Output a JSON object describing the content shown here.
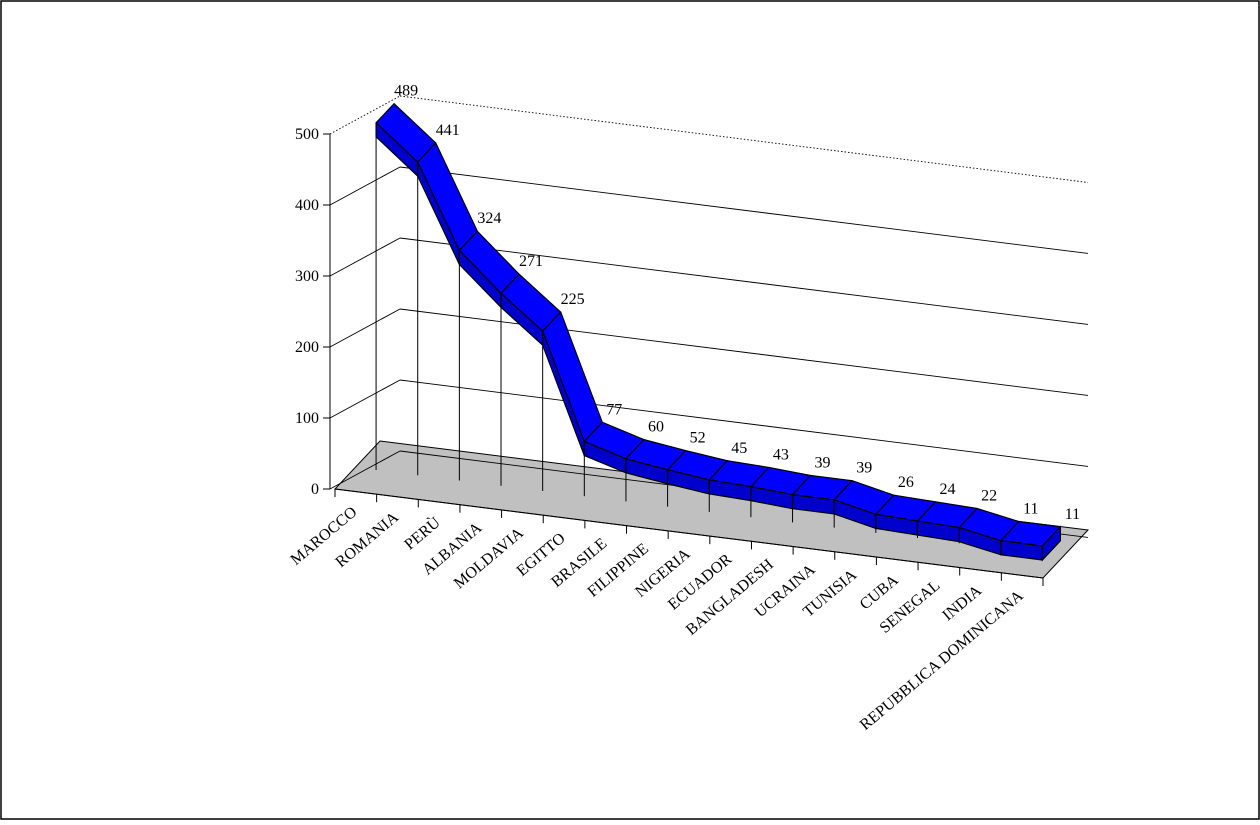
{
  "chart_data": {
    "type": "line",
    "style": "3d-ribbon",
    "title": "",
    "xlabel": "",
    "ylabel": "",
    "ylim": [
      0,
      500
    ],
    "yticks": [
      "0",
      "100",
      "200",
      "300",
      "400",
      "500"
    ],
    "grid": true,
    "legend": "none",
    "categories": [
      "MAROCCO",
      "ROMANIA",
      "PERÙ",
      "ALBANIA",
      "MOLDAVIA",
      "EGITTO",
      "BRASILE",
      "FILIPPINE",
      "NIGERIA",
      "ECUADOR",
      "BANGLADESH",
      "UCRAINA",
      "TUNISIA",
      "CUBA",
      "SENEGAL",
      "INDIA",
      "REPUBBLICA DOMINICANA"
    ],
    "values": [
      489,
      441,
      324,
      271,
      225,
      77,
      60,
      52,
      45,
      43,
      39,
      39,
      26,
      24,
      22,
      11,
      11
    ],
    "data_labels": [
      "489",
      "441",
      "324",
      "271",
      "225",
      "77",
      "60",
      "52",
      "45",
      "43",
      "39",
      "39",
      "26",
      "24",
      "22",
      "11",
      "11"
    ],
    "colors": {
      "ribbon": "#0000ff",
      "ribbon_top": "#1a1aff",
      "floor": "#c0c0c0",
      "grid": "#000000",
      "highlight_label": "#6699cc"
    }
  }
}
